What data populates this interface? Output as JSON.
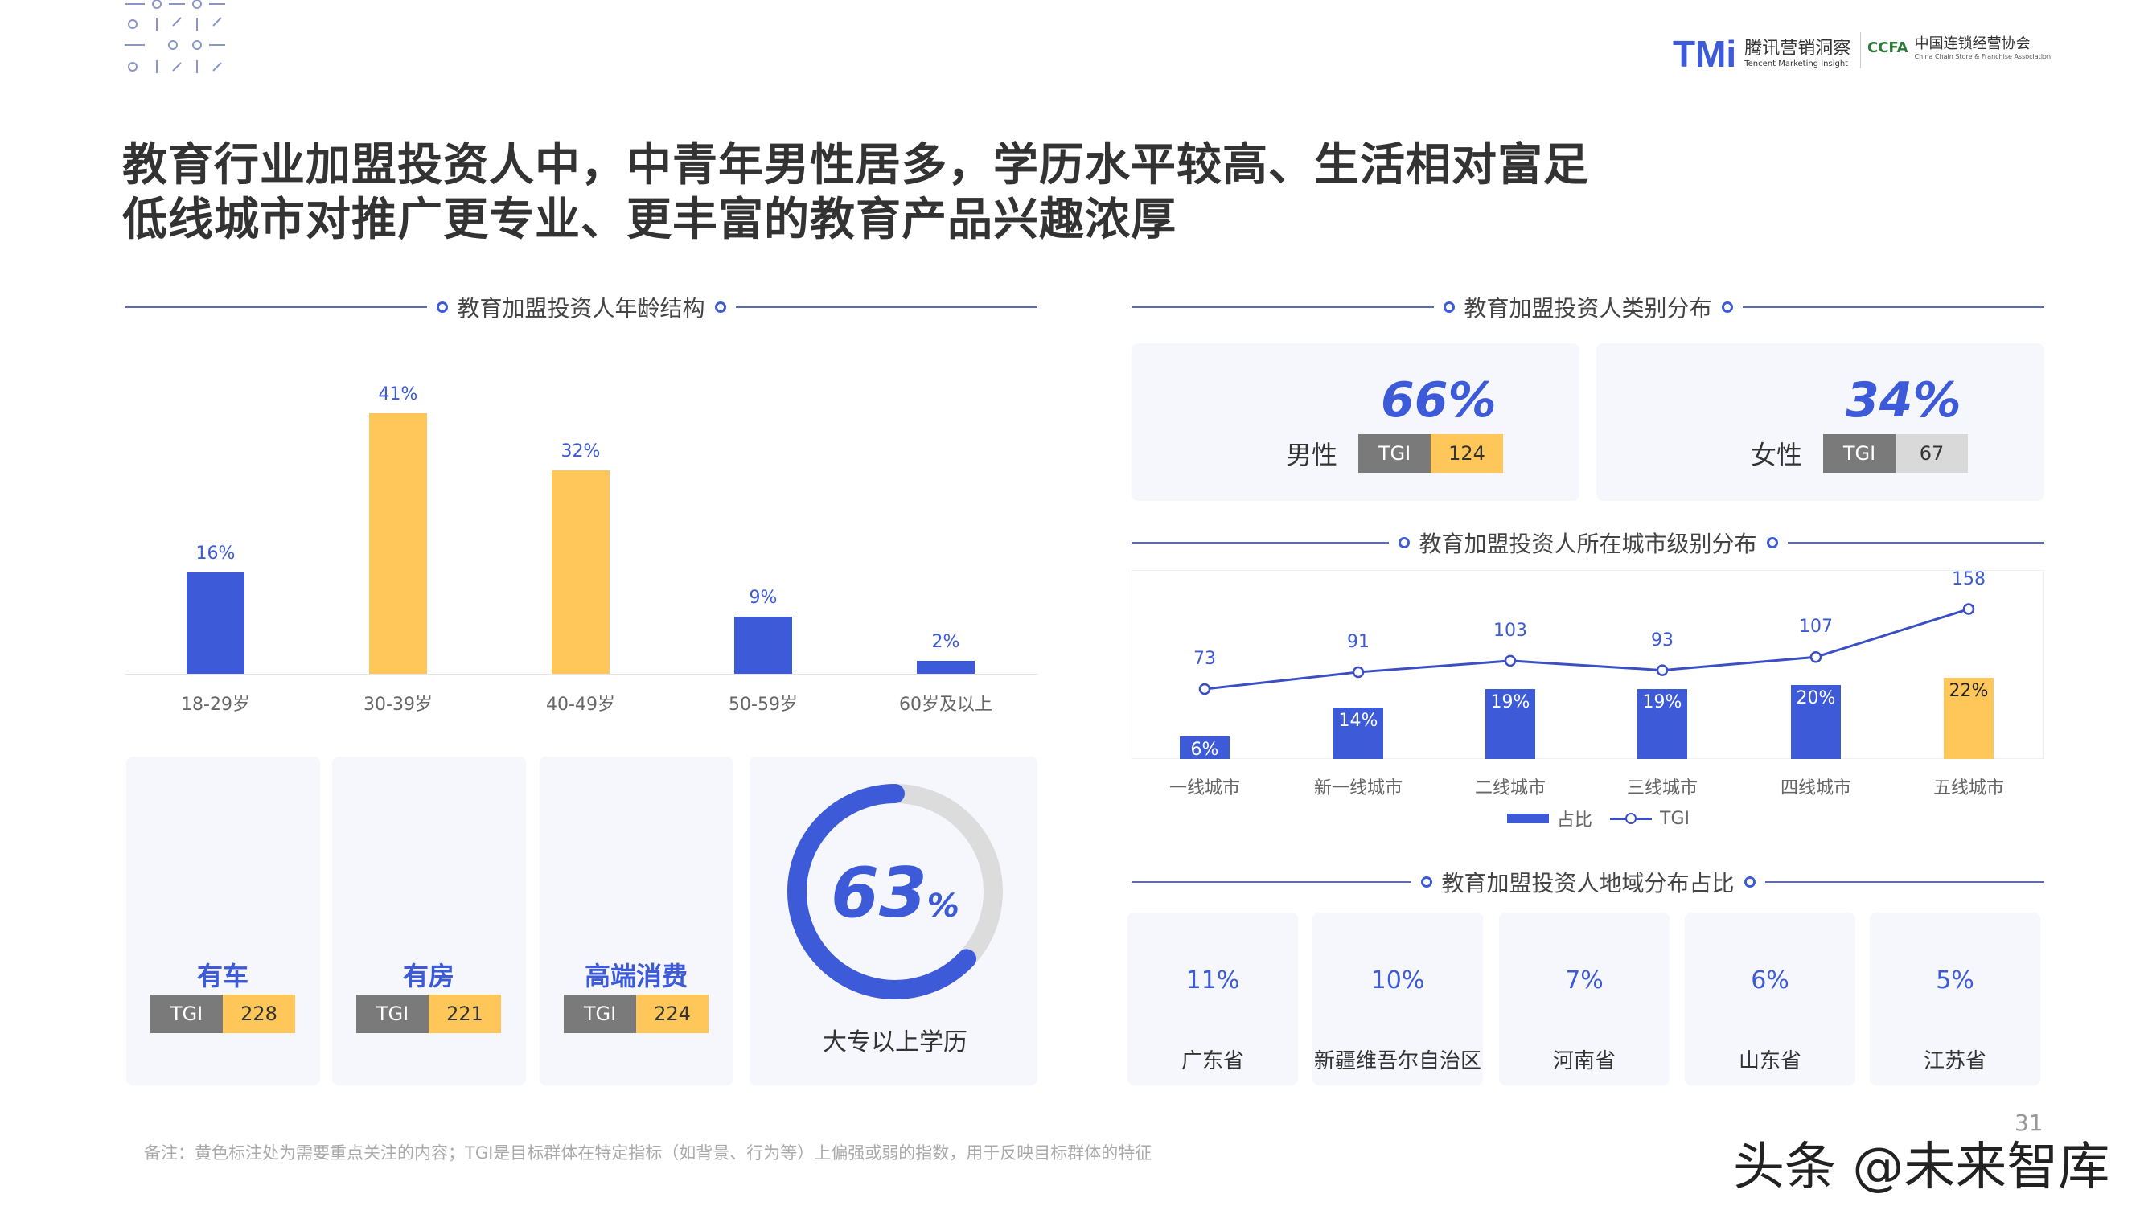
{
  "header": {
    "logo_tmi": "TMi",
    "logo_tmi_cn": "腾讯营销洞察",
    "logo_tmi_en": "Tencent Marketing Insight",
    "logo_ccfa": "CCFA",
    "logo_ccfa_cn": "中国连锁经营协会",
    "logo_ccfa_en": "China Chain Store & Franchise Association"
  },
  "title": {
    "line1": "教育行业加盟投资人中，中青年男性居多，学历水平较高、生活相对富足",
    "line2": "低线城市对推广更专业、更丰富的教育产品兴趣浓厚"
  },
  "colors": {
    "blue": "#3d5bd9",
    "yellow": "#ffc75a",
    "gray": "#d9d9d9"
  },
  "age": {
    "heading": "教育加盟投资人年龄结构",
    "chart_data": {
      "type": "bar",
      "categories": [
        "18-29岁",
        "30-39岁",
        "40-49岁",
        "50-59岁",
        "60岁及以上"
      ],
      "values": [
        16,
        41,
        32,
        9,
        2
      ],
      "labels": [
        "16%",
        "41%",
        "32%",
        "9%",
        "2%"
      ],
      "highlight": [
        false,
        true,
        true,
        false,
        false
      ],
      "unit": "%"
    }
  },
  "features": [
    {
      "icon": "car-icon",
      "label": "有车",
      "tgi_label": "TGI",
      "tgi": "228"
    },
    {
      "icon": "building-icon",
      "label": "有房",
      "tgi_label": "TGI",
      "tgi": "221"
    },
    {
      "icon": "cart-icon",
      "label": "高端消费",
      "tgi_label": "TGI",
      "tgi": "224"
    }
  ],
  "education": {
    "value": 63,
    "number": "63",
    "unit": "%",
    "label": "大专以上学历"
  },
  "gender": {
    "heading": "教育加盟投资人类别分布",
    "items": [
      {
        "icon": "male-user-icon",
        "pct": "66%",
        "label": "男性",
        "tgi_label": "TGI",
        "tgi": "124",
        "tgi_color": "#ffc75a"
      },
      {
        "icon": "female-user-icon",
        "pct": "34%",
        "label": "女性",
        "tgi_label": "TGI",
        "tgi": "67",
        "tgi_color": "#d9d9d9"
      }
    ]
  },
  "city": {
    "heading": "教育加盟投资人所在城市级别分布",
    "chart_data": {
      "type": "bar+line",
      "categories": [
        "一线城市",
        "新一线城市",
        "二线城市",
        "三线城市",
        "四线城市",
        "五线城市"
      ],
      "series": [
        {
          "name": "占比",
          "type": "bar",
          "values": [
            6,
            14,
            19,
            19,
            20,
            22
          ],
          "labels": [
            "6%",
            "14%",
            "19%",
            "19%",
            "20%",
            "22%"
          ]
        },
        {
          "name": "TGI",
          "type": "line",
          "values": [
            73,
            91,
            103,
            93,
            107,
            158
          ],
          "labels": [
            "73",
            "91",
            "103",
            "93",
            "107",
            "158"
          ]
        }
      ],
      "highlight": [
        false,
        false,
        false,
        false,
        false,
        true
      ],
      "legend": "bottom"
    }
  },
  "region": {
    "heading": "教育加盟投资人地域分布占比",
    "items": [
      {
        "label": "广东省",
        "value": 11,
        "text": "11%"
      },
      {
        "label": "新疆维吾尔自治区",
        "value": 10,
        "text": "10%"
      },
      {
        "label": "河南省",
        "value": 7,
        "text": "7%"
      },
      {
        "label": "山东省",
        "value": 6,
        "text": "6%"
      },
      {
        "label": "江苏省",
        "value": 5,
        "text": "5%"
      }
    ]
  },
  "footnote": "备注：黄色标注处为需要重点关注的内容；TGI是目标群体在特定指标（如背景、行为等）上偏强或弱的指数，用于反映目标群体的特征",
  "page_number": "31",
  "watermark": "头条 @未来智库"
}
